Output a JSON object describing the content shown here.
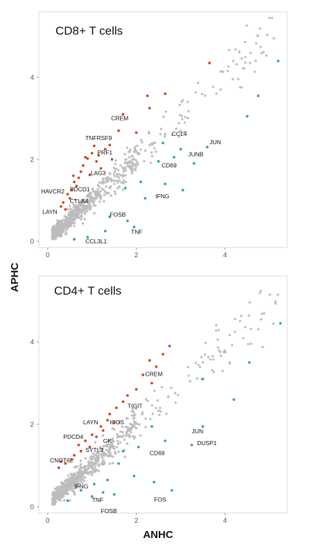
{
  "colors": {
    "up": "#c84a1e",
    "down": "#3a9fb5",
    "ns": "#bdbdbd",
    "frame": "#d9d9d9"
  },
  "axes": {
    "xlabel": "ANHC",
    "ylabel": "APHC"
  },
  "chart_data": [
    {
      "type": "scatter",
      "title": "CD8+ T cells",
      "xlim": [
        -0.2,
        5.4
      ],
      "ylim": [
        -0.15,
        5.6
      ],
      "xticks": [
        0,
        2,
        4
      ],
      "yticks": [
        0,
        2,
        4
      ],
      "xtick_labels": [
        "0",
        "2",
        "4"
      ],
      "ytick_labels": [
        "0",
        "2",
        "4"
      ],
      "grid": false,
      "background_points": {
        "group": "ns",
        "description_free": true
      },
      "points": [
        {
          "x": 1.05,
          "y": 2.33,
          "group": "up"
        },
        {
          "x": 1.0,
          "y": 2.15,
          "group": "up"
        },
        {
          "x": 0.9,
          "y": 2.02,
          "group": "up"
        },
        {
          "x": 1.1,
          "y": 1.95,
          "group": "up"
        },
        {
          "x": 0.8,
          "y": 1.85,
          "group": "up"
        },
        {
          "x": 1.2,
          "y": 1.78,
          "group": "up"
        },
        {
          "x": 0.75,
          "y": 1.7,
          "group": "up"
        },
        {
          "x": 0.95,
          "y": 1.62,
          "group": "up"
        },
        {
          "x": 0.7,
          "y": 1.55,
          "group": "up"
        },
        {
          "x": 0.6,
          "y": 1.45,
          "group": "up"
        },
        {
          "x": 0.65,
          "y": 1.35,
          "group": "up"
        },
        {
          "x": 0.55,
          "y": 1.25,
          "group": "up"
        },
        {
          "x": 0.45,
          "y": 1.15,
          "group": "up"
        },
        {
          "x": 0.5,
          "y": 1.05,
          "group": "up"
        },
        {
          "x": 0.35,
          "y": 0.95,
          "group": "up"
        },
        {
          "x": 0.3,
          "y": 0.85,
          "group": "up"
        },
        {
          "x": 0.4,
          "y": 0.78,
          "group": "up"
        },
        {
          "x": 1.3,
          "y": 2.25,
          "group": "up"
        },
        {
          "x": 1.4,
          "y": 2.35,
          "group": "up"
        },
        {
          "x": 1.45,
          "y": 2.0,
          "group": "up"
        },
        {
          "x": 1.6,
          "y": 2.7,
          "group": "up"
        },
        {
          "x": 1.7,
          "y": 3.1,
          "group": "up"
        },
        {
          "x": 2.25,
          "y": 3.55,
          "group": "up"
        },
        {
          "x": 2.65,
          "y": 3.6,
          "group": "up"
        },
        {
          "x": 3.65,
          "y": 4.35,
          "group": "up"
        },
        {
          "x": 2.3,
          "y": 3.25,
          "group": "up"
        },
        {
          "x": 2.0,
          "y": 2.65,
          "group": "up"
        },
        {
          "x": 0.85,
          "y": 2.05,
          "group": "up"
        },
        {
          "x": 1.15,
          "y": 2.1,
          "group": "up"
        },
        {
          "x": 0.58,
          "y": 1.6,
          "group": "up"
        },
        {
          "x": 2.6,
          "y": 2.4,
          "group": "down"
        },
        {
          "x": 3.0,
          "y": 2.25,
          "group": "down"
        },
        {
          "x": 2.85,
          "y": 2.05,
          "group": "down"
        },
        {
          "x": 2.5,
          "y": 1.95,
          "group": "down"
        },
        {
          "x": 3.3,
          "y": 1.9,
          "group": "down"
        },
        {
          "x": 3.6,
          "y": 2.3,
          "group": "down"
        },
        {
          "x": 3.05,
          "y": 1.25,
          "group": "down"
        },
        {
          "x": 2.65,
          "y": 1.4,
          "group": "down"
        },
        {
          "x": 2.1,
          "y": 1.45,
          "group": "down"
        },
        {
          "x": 1.75,
          "y": 1.3,
          "group": "down"
        },
        {
          "x": 1.8,
          "y": 0.5,
          "group": "down"
        },
        {
          "x": 1.95,
          "y": 0.35,
          "group": "down"
        },
        {
          "x": 1.3,
          "y": 0.25,
          "group": "down"
        },
        {
          "x": 0.9,
          "y": 0.1,
          "group": "down"
        },
        {
          "x": 0.6,
          "y": 0.05,
          "group": "down"
        },
        {
          "x": 4.5,
          "y": 3.05,
          "group": "down"
        },
        {
          "x": 4.75,
          "y": 3.55,
          "group": "down"
        },
        {
          "x": 5.2,
          "y": 4.4,
          "group": "down"
        },
        {
          "x": 1.4,
          "y": 0.6,
          "group": "down"
        },
        {
          "x": 2.2,
          "y": 1.05,
          "group": "down"
        }
      ],
      "labels": [
        {
          "text": "CREM",
          "x": 1.43,
          "y": 2.95
        },
        {
          "text": "TNFRSF9",
          "x": 0.85,
          "y": 2.47
        },
        {
          "text": "PRF1",
          "x": 1.12,
          "y": 2.12
        },
        {
          "text": "LAG3",
          "x": 0.97,
          "y": 1.62
        },
        {
          "text": "HAVCR2",
          "x": -0.15,
          "y": 1.17
        },
        {
          "text": "PDCD1",
          "x": 0.5,
          "y": 1.22
        },
        {
          "text": "CTLA4",
          "x": 0.5,
          "y": 0.93
        },
        {
          "text": "LAYN",
          "x": -0.12,
          "y": 0.67
        },
        {
          "text": "FOSB",
          "x": 1.4,
          "y": 0.6
        },
        {
          "text": "TNF",
          "x": 1.88,
          "y": 0.18
        },
        {
          "text": "CCL3L1",
          "x": 0.85,
          "y": -0.05
        },
        {
          "text": "CCL4",
          "x": 2.8,
          "y": 2.57
        },
        {
          "text": "JUN",
          "x": 3.65,
          "y": 2.37
        },
        {
          "text": "JUNB",
          "x": 3.17,
          "y": 2.07
        },
        {
          "text": "CD69",
          "x": 2.57,
          "y": 1.8
        },
        {
          "text": "IFNG",
          "x": 2.43,
          "y": 1.05
        }
      ]
    },
    {
      "type": "scatter",
      "title": "CD4+ T cells",
      "xlim": [
        -0.2,
        5.4
      ],
      "ylim": [
        -0.15,
        5.6
      ],
      "xticks": [
        0,
        2,
        4
      ],
      "yticks": [
        0,
        2,
        4
      ],
      "xtick_labels": [
        "0",
        "2",
        "4"
      ],
      "ytick_labels": [
        "0",
        "2",
        "4"
      ],
      "grid": false,
      "points": [
        {
          "x": 2.75,
          "y": 3.9,
          "group": "up"
        },
        {
          "x": 2.6,
          "y": 3.7,
          "group": "up"
        },
        {
          "x": 2.3,
          "y": 3.55,
          "group": "up"
        },
        {
          "x": 2.45,
          "y": 3.4,
          "group": "up"
        },
        {
          "x": 2.15,
          "y": 3.2,
          "group": "up"
        },
        {
          "x": 2.0,
          "y": 2.85,
          "group": "up"
        },
        {
          "x": 1.8,
          "y": 2.7,
          "group": "up"
        },
        {
          "x": 1.7,
          "y": 2.55,
          "group": "up"
        },
        {
          "x": 1.55,
          "y": 2.4,
          "group": "up"
        },
        {
          "x": 1.4,
          "y": 2.25,
          "group": "up"
        },
        {
          "x": 1.35,
          "y": 2.1,
          "group": "up"
        },
        {
          "x": 1.2,
          "y": 1.95,
          "group": "up"
        },
        {
          "x": 1.0,
          "y": 1.75,
          "group": "up"
        },
        {
          "x": 0.85,
          "y": 1.6,
          "group": "up"
        },
        {
          "x": 0.95,
          "y": 1.45,
          "group": "up"
        },
        {
          "x": 0.75,
          "y": 1.35,
          "group": "up"
        },
        {
          "x": 0.6,
          "y": 1.25,
          "group": "up"
        },
        {
          "x": 0.55,
          "y": 1.15,
          "group": "up"
        },
        {
          "x": 0.4,
          "y": 1.05,
          "group": "up"
        },
        {
          "x": 0.25,
          "y": 0.95,
          "group": "up"
        },
        {
          "x": 0.3,
          "y": 1.1,
          "group": "up"
        },
        {
          "x": 1.1,
          "y": 1.7,
          "group": "up"
        },
        {
          "x": 1.5,
          "y": 2.05,
          "group": "up"
        },
        {
          "x": 1.25,
          "y": 1.85,
          "group": "up"
        },
        {
          "x": 0.7,
          "y": 1.5,
          "group": "up"
        },
        {
          "x": 2.35,
          "y": 3.0,
          "group": "up"
        },
        {
          "x": 2.35,
          "y": 1.95,
          "group": "down"
        },
        {
          "x": 3.5,
          "y": 1.95,
          "group": "down"
        },
        {
          "x": 3.25,
          "y": 1.5,
          "group": "down"
        },
        {
          "x": 2.65,
          "y": 1.6,
          "group": "down"
        },
        {
          "x": 2.05,
          "y": 1.45,
          "group": "down"
        },
        {
          "x": 1.6,
          "y": 1.05,
          "group": "down"
        },
        {
          "x": 1.95,
          "y": 0.75,
          "group": "down"
        },
        {
          "x": 1.35,
          "y": 0.65,
          "group": "down"
        },
        {
          "x": 1.05,
          "y": 0.55,
          "group": "down"
        },
        {
          "x": 1.25,
          "y": 0.35,
          "group": "down"
        },
        {
          "x": 1.5,
          "y": 0.3,
          "group": "down"
        },
        {
          "x": 1.0,
          "y": 0.25,
          "group": "down"
        },
        {
          "x": 0.75,
          "y": 0.4,
          "group": "down"
        },
        {
          "x": 2.8,
          "y": 0.4,
          "group": "down"
        },
        {
          "x": 2.4,
          "y": 0.6,
          "group": "down"
        },
        {
          "x": 3.5,
          "y": 3.1,
          "group": "down"
        },
        {
          "x": 4.55,
          "y": 3.5,
          "group": "down"
        },
        {
          "x": 5.25,
          "y": 4.45,
          "group": "down"
        },
        {
          "x": 4.2,
          "y": 2.6,
          "group": "down"
        },
        {
          "x": 0.45,
          "y": 0.15,
          "group": "down"
        },
        {
          "x": 1.7,
          "y": 1.35,
          "group": "down"
        }
      ],
      "labels": [
        {
          "text": "CREM",
          "x": 2.2,
          "y": 3.17
        },
        {
          "text": "TIGIT",
          "x": 1.8,
          "y": 2.4
        },
        {
          "text": "ICOS",
          "x": 1.4,
          "y": 2.0
        },
        {
          "text": "LAYN",
          "x": 0.8,
          "y": 2.0
        },
        {
          "text": "PDCD4",
          "x": 0.35,
          "y": 1.65
        },
        {
          "text": "GK",
          "x": 1.25,
          "y": 1.55
        },
        {
          "text": "SYTL3",
          "x": 0.85,
          "y": 1.33
        },
        {
          "text": "CNOT6L",
          "x": 0.05,
          "y": 1.08
        },
        {
          "text": "IFNG",
          "x": 0.6,
          "y": 0.45
        },
        {
          "text": "TNF",
          "x": 1.0,
          "y": 0.12
        },
        {
          "text": "FOSB",
          "x": 1.2,
          "y": -0.15
        },
        {
          "text": "FOS",
          "x": 2.4,
          "y": 0.13
        },
        {
          "text": "CD69",
          "x": 2.3,
          "y": 1.25
        },
        {
          "text": "JUN",
          "x": 3.25,
          "y": 1.78
        },
        {
          "text": "DUSP1",
          "x": 3.37,
          "y": 1.5
        }
      ]
    }
  ]
}
